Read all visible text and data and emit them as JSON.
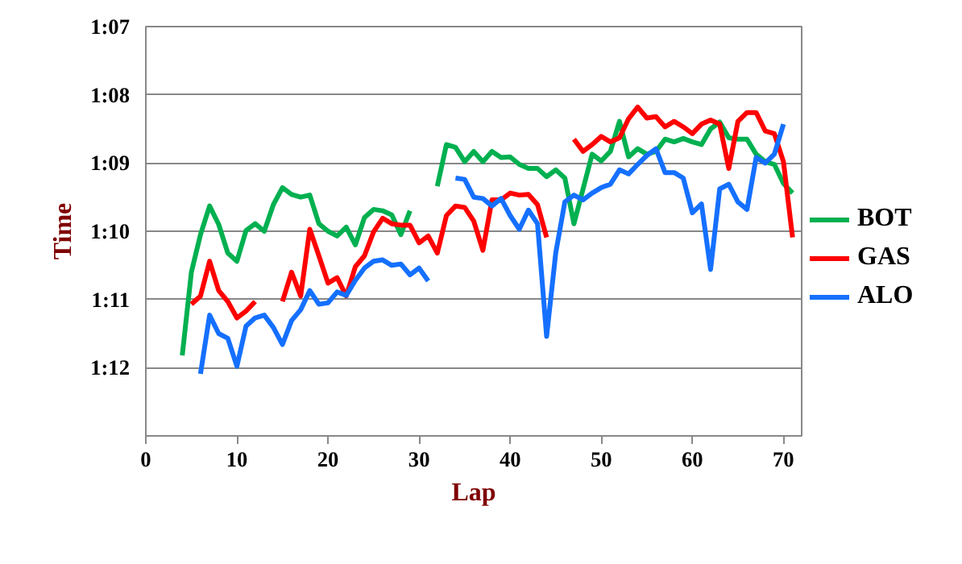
{
  "chart_data": {
    "type": "line",
    "xlabel": "Lap",
    "ylabel": "Time",
    "x": [
      4,
      5,
      6,
      7,
      8,
      9,
      10,
      11,
      12,
      13,
      14,
      15,
      16,
      17,
      18,
      19,
      20,
      21,
      22,
      23,
      24,
      25,
      26,
      27,
      28,
      29,
      30,
      31,
      32,
      33,
      34,
      35,
      36,
      37,
      38,
      39,
      40,
      41,
      42,
      43,
      44,
      45,
      46,
      47,
      48,
      49,
      50,
      51,
      52,
      53,
      54,
      55,
      56,
      57,
      58,
      59,
      60,
      61,
      62,
      63,
      64,
      65,
      66,
      67,
      68,
      69,
      70,
      71
    ],
    "series": [
      {
        "name": "BOT",
        "color": "#00b050",
        "values": [
          71.82,
          70.6,
          70.05,
          69.63,
          69.9,
          70.32,
          70.44,
          69.99,
          69.89,
          70.0,
          69.61,
          69.36,
          69.46,
          69.5,
          69.47,
          69.89,
          70.0,
          70.07,
          69.94,
          70.2,
          69.8,
          69.68,
          69.7,
          69.76,
          70.05,
          69.7,
          null,
          null,
          69.34,
          68.73,
          68.77,
          68.98,
          68.83,
          68.98,
          68.83,
          68.92,
          68.91,
          69.02,
          69.08,
          69.08,
          69.2,
          69.1,
          69.22,
          69.89,
          69.38,
          68.87,
          68.97,
          68.83,
          68.39,
          68.91,
          68.79,
          68.87,
          68.83,
          68.65,
          68.69,
          68.64,
          68.69,
          68.73,
          68.5,
          68.4,
          68.63,
          68.65,
          68.65,
          68.87,
          68.98,
          69.02,
          69.3,
          69.44
        ]
      },
      {
        "name": "GAS",
        "color": "#ff0000",
        "values": [
          null,
          71.07,
          70.95,
          70.44,
          70.87,
          71.03,
          71.27,
          71.17,
          71.03,
          null,
          null,
          71.03,
          70.6,
          70.95,
          69.97,
          70.36,
          70.76,
          70.68,
          70.95,
          70.52,
          70.36,
          70.01,
          69.81,
          69.89,
          69.91,
          69.91,
          70.17,
          70.07,
          70.32,
          69.77,
          69.63,
          69.65,
          69.85,
          70.28,
          69.54,
          69.54,
          69.44,
          69.47,
          69.46,
          69.61,
          70.09,
          null,
          null,
          68.65,
          68.83,
          68.73,
          68.61,
          68.69,
          68.63,
          68.35,
          68.18,
          68.34,
          68.32,
          68.47,
          68.39,
          68.47,
          68.57,
          68.43,
          68.37,
          68.43,
          69.08,
          68.39,
          68.26,
          68.26,
          68.53,
          68.57,
          68.98,
          70.09
        ]
      },
      {
        "name": "ALO",
        "color": "#1570ff",
        "values": [
          null,
          null,
          72.09,
          71.23,
          71.5,
          71.57,
          71.98,
          71.39,
          71.27,
          71.23,
          71.41,
          71.66,
          71.31,
          71.15,
          70.87,
          71.07,
          71.05,
          70.89,
          70.94,
          70.72,
          70.54,
          70.44,
          70.42,
          70.5,
          70.48,
          70.64,
          70.54,
          70.73,
          null,
          null,
          69.22,
          69.24,
          69.5,
          69.52,
          69.63,
          69.52,
          69.77,
          69.97,
          69.69,
          69.89,
          71.54,
          70.32,
          69.57,
          69.47,
          69.54,
          69.44,
          69.36,
          69.31,
          69.1,
          69.16,
          69.02,
          68.89,
          68.79,
          69.14,
          69.14,
          69.22,
          69.73,
          69.6,
          70.56,
          69.38,
          69.31,
          69.57,
          69.68,
          68.92,
          69.0,
          68.87,
          68.43,
          null
        ]
      }
    ],
    "xlim": [
      0,
      72
    ],
    "xticks": [
      0,
      10,
      20,
      30,
      40,
      50,
      60,
      70
    ],
    "ylim": [
      73,
      67
    ],
    "yticks": [
      {
        "value": 67,
        "label": "1:07"
      },
      {
        "value": 68,
        "label": "1:08"
      },
      {
        "value": 69,
        "label": "1:09"
      },
      {
        "value": 70,
        "label": "1:10"
      },
      {
        "value": 71,
        "label": "1:11"
      },
      {
        "value": 72,
        "label": "1:12"
      }
    ],
    "grid": "y",
    "legend": "right",
    "marker": "none",
    "line_style": "solid"
  }
}
